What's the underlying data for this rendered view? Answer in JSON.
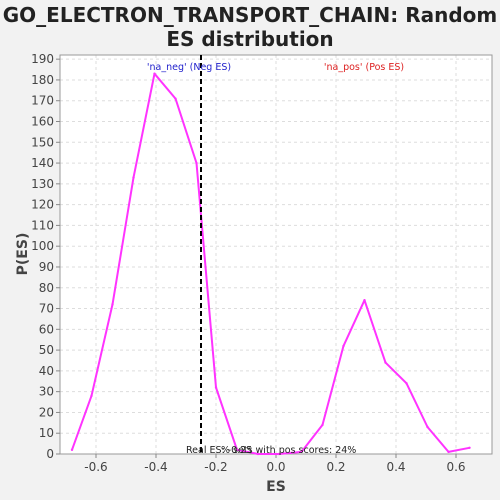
{
  "title_line1": "GO_ELECTRON_TRANSPORT_CHAIN: Random",
  "title_line2": "ES distribution",
  "chart_data": {
    "type": "line",
    "xlabel": "ES",
    "ylabel": "P(ES)",
    "xlim": [
      -0.72,
      0.72
    ],
    "ylim": [
      0,
      192
    ],
    "x_ticks": [
      -0.6,
      -0.4,
      -0.2,
      0.0,
      0.2,
      0.4,
      0.6
    ],
    "y_ticks": [
      0,
      10,
      20,
      30,
      40,
      50,
      60,
      70,
      80,
      90,
      100,
      110,
      120,
      130,
      140,
      150,
      160,
      170,
      180,
      190
    ],
    "grid": true,
    "series": [
      {
        "color": "#ff33ff",
        "x": [
          -0.68,
          -0.615,
          -0.545,
          -0.475,
          -0.405,
          -0.335,
          -0.265,
          -0.2,
          -0.13,
          -0.06,
          0.01,
          0.085,
          0.155,
          0.225,
          0.295,
          0.365,
          0.435,
          0.505,
          0.575,
          0.645
        ],
        "y": [
          2,
          28,
          72,
          133,
          183,
          171,
          140,
          32,
          2,
          0,
          0,
          1,
          14,
          52,
          74,
          44,
          34,
          13,
          1,
          3
        ]
      }
    ],
    "real_es": -0.25,
    "annotations": {
      "neg": {
        "text": "'na_neg' (Neg ES)",
        "color": "#2222cc"
      },
      "pos": {
        "text": "'na_pos' (Pos ES)",
        "color": "#dd2222"
      },
      "real": {
        "text": "Real ES: -0.25",
        "color": "#222222"
      },
      "pos_scores": {
        "text": "% sets with pos scores: 24%",
        "color": "#222222"
      }
    }
  }
}
